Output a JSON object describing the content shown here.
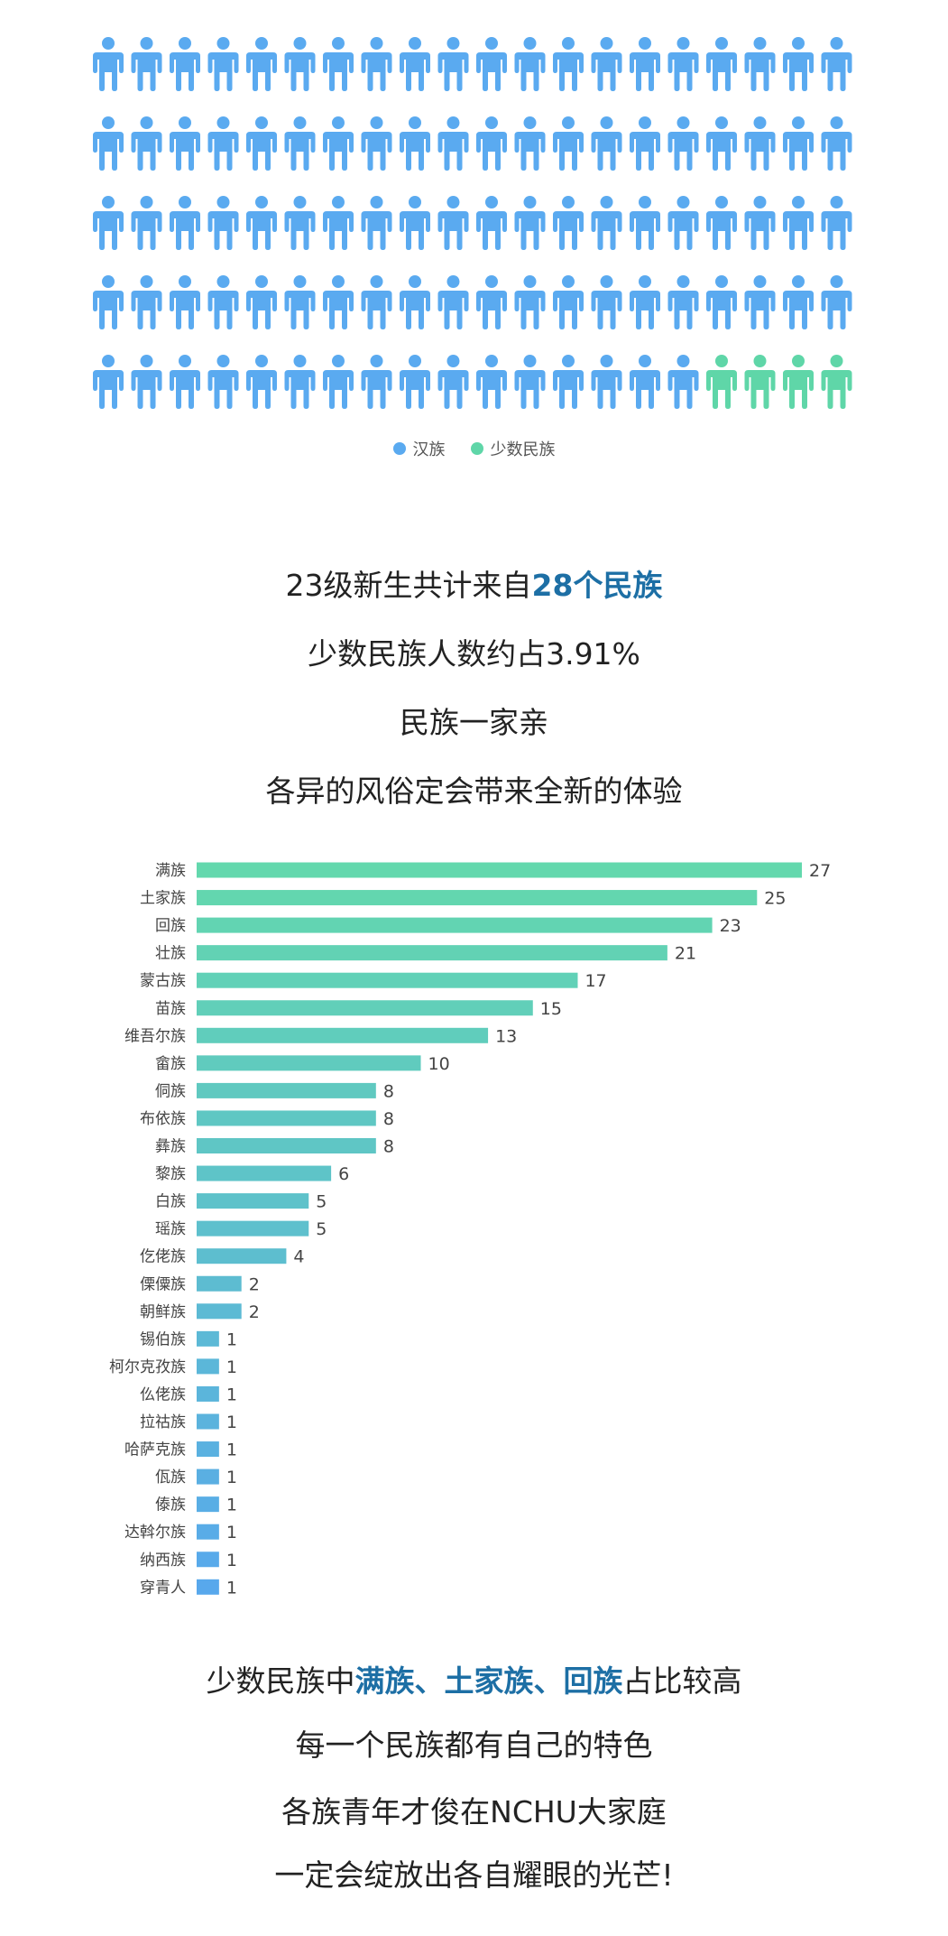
{
  "pictogram": {
    "total_icons": 100,
    "minority_icons": 4,
    "columns": 20,
    "colors": {
      "han": "#5aaaf0",
      "minority": "#5fd6a8"
    },
    "legend": [
      {
        "label": "汉族",
        "color": "#5aaaf0"
      },
      {
        "label": "少数民族",
        "color": "#5fd6a8"
      }
    ]
  },
  "intro": {
    "line1_prefix": "23级新生共计来自",
    "line1_highlight": "28个民族",
    "line2": "少数民族人数约占3.91%",
    "line3": "民族一家亲",
    "line4": "各异的风俗定会带来全新的体验"
  },
  "chart_data": {
    "type": "bar",
    "orientation": "horizontal",
    "title": "",
    "xlabel": "",
    "ylabel": "",
    "xlim": [
      0,
      27
    ],
    "grid": false,
    "color_gradient": [
      "#63d8ad",
      "#58a8ec"
    ],
    "categories": [
      "满族",
      "土家族",
      "回族",
      "壮族",
      "蒙古族",
      "苗族",
      "维吾尔族",
      "畲族",
      "侗族",
      "布依族",
      "彝族",
      "黎族",
      "白族",
      "瑶族",
      "仡佬族",
      "傈僳族",
      "朝鲜族",
      "锡伯族",
      "柯尔克孜族",
      "仫佬族",
      "拉祜族",
      "哈萨克族",
      "佤族",
      "傣族",
      "达斡尔族",
      "纳西族",
      "穿青人"
    ],
    "values": [
      27,
      25,
      23,
      21,
      17,
      15,
      13,
      10,
      8,
      8,
      8,
      6,
      5,
      5,
      4,
      2,
      2,
      1,
      1,
      1,
      1,
      1,
      1,
      1,
      1,
      1,
      1
    ]
  },
  "outro": {
    "line1_prefix": "少数民族中",
    "line1_highlight": "满族、土家族、回族",
    "line1_suffix": "占比较高",
    "line2": "每一个民族都有自己的特色",
    "line3": "各族青年才俊在NCHU大家庭",
    "line4": "一定会绽放出各自耀眼的光芒!"
  }
}
